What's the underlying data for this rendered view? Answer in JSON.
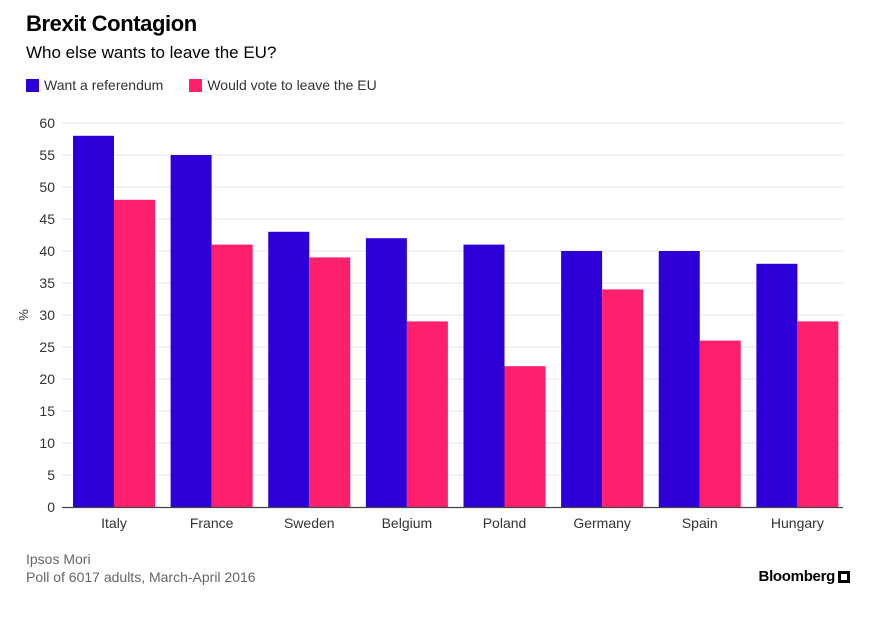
{
  "header": {
    "title": "Brexit Contagion",
    "subtitle": "Who else wants to leave the EU?"
  },
  "footer": {
    "source_line1": "Ipsos Mori",
    "source_line2": "Poll of 6017 adults, March-April 2016",
    "brand": "Bloomberg"
  },
  "colors": {
    "want_referendum": "#2c00d6",
    "vote_leave": "#ff1f6d",
    "grid": "#e6e6e6",
    "axis": "#444444"
  },
  "chart_data": {
    "type": "bar",
    "title": "Brexit Contagion",
    "subtitle": "Who else wants to leave the EU?",
    "xlabel": "",
    "ylabel": "%",
    "ylim": [
      0,
      60
    ],
    "yticks": [
      0,
      5,
      10,
      15,
      20,
      25,
      30,
      35,
      40,
      45,
      50,
      55,
      60
    ],
    "grid": true,
    "legend_position": "top-left",
    "categories": [
      "Italy",
      "France",
      "Sweden",
      "Belgium",
      "Poland",
      "Germany",
      "Spain",
      "Hungary"
    ],
    "series": [
      {
        "name": "Want a referendum",
        "values": [
          58,
          55,
          43,
          42,
          41,
          40,
          40,
          38
        ]
      },
      {
        "name": "Would vote to leave the EU",
        "values": [
          48,
          41,
          39,
          29,
          22,
          34,
          26,
          29
        ]
      }
    ]
  }
}
